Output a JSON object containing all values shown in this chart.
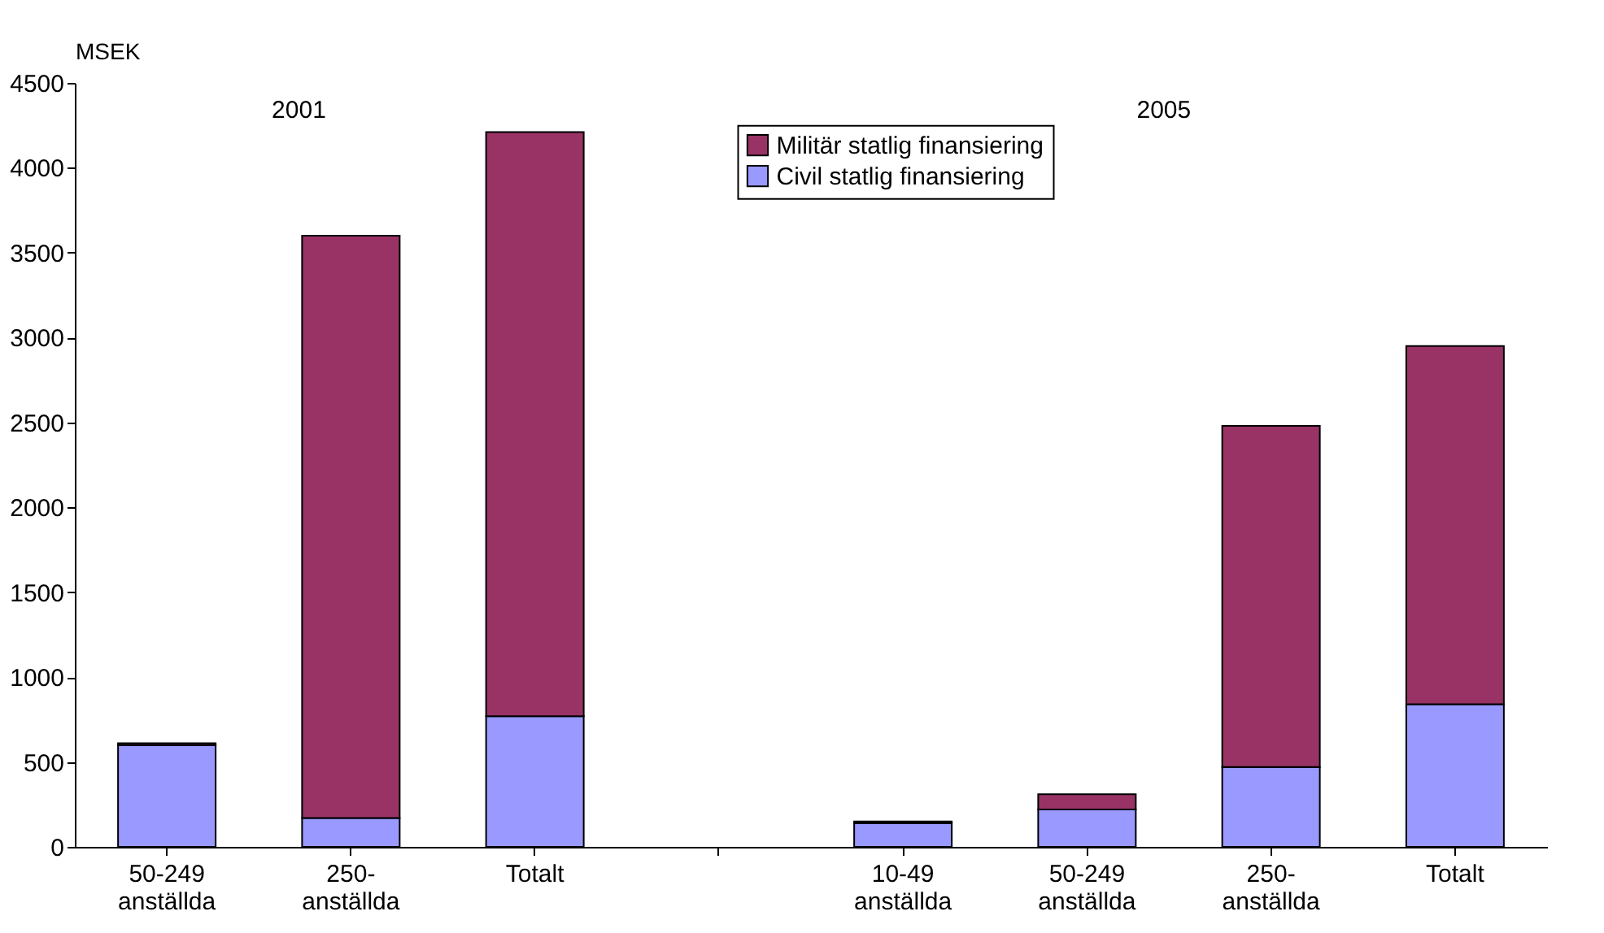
{
  "chart_data": {
    "type": "bar",
    "stacked": true,
    "ylabel": "MSEK",
    "categories": [
      "50-249 anställda",
      "250- anställda",
      "Totalt",
      null,
      "10-49 anställda",
      "50-249 anställda",
      "250- anställda",
      "Totalt"
    ],
    "series": [
      {
        "name": "Civil statlig finansiering",
        "color": "#9999ff",
        "values": [
          600,
          170,
          770,
          null,
          140,
          220,
          470,
          840
        ]
      },
      {
        "name": "Militär statlig finansiering",
        "color": "#993366",
        "values": [
          10,
          3430,
          3440,
          null,
          10,
          90,
          2010,
          2110
        ]
      }
    ],
    "ylim": [
      0,
      4500
    ],
    "yticks": [
      0,
      500,
      1000,
      1500,
      2000,
      2500,
      3000,
      3500,
      4000,
      4500
    ],
    "grid": false,
    "legend": "top",
    "annotations": [
      "2001",
      "2005"
    ]
  }
}
